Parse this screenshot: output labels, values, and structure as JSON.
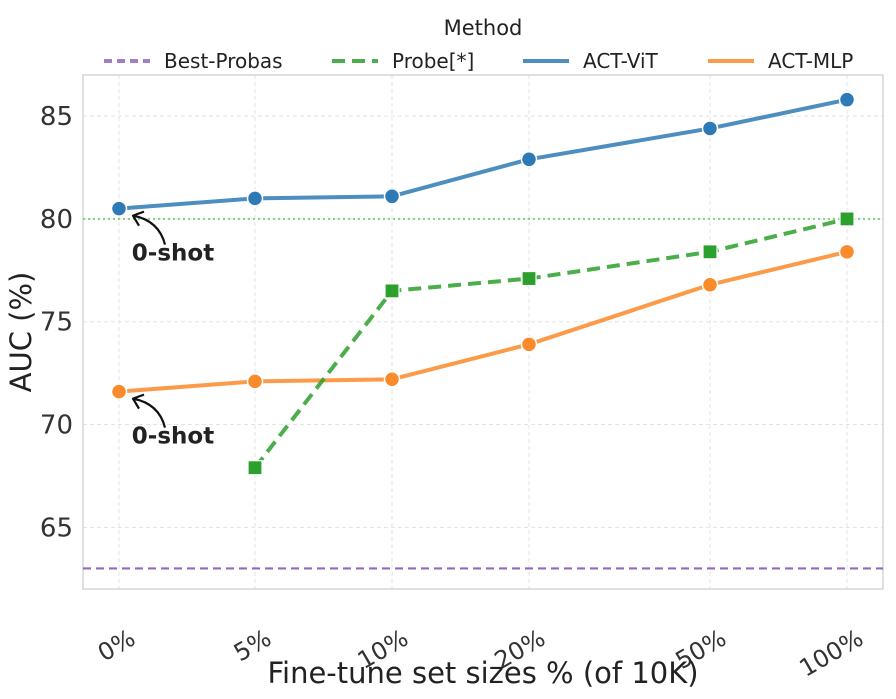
{
  "chart_data": {
    "type": "line",
    "title": "",
    "xlabel": "Fine-tune set sizes % (of 10K)",
    "ylabel": "AUC (%)",
    "categories": [
      "0%",
      "5%",
      "10%",
      "20%",
      "50%",
      "100%"
    ],
    "ylim": [
      62,
      87
    ],
    "yticks": [
      65,
      70,
      75,
      80,
      85
    ],
    "grid": true,
    "legend": {
      "title": "Method",
      "placement": "top-center",
      "entries": [
        "Best-Probas",
        "Probe[*]",
        "ACT-ViT",
        "ACT-MLP"
      ]
    },
    "series": [
      {
        "name": "ACT-ViT",
        "color": "#2e7ab6",
        "style": "solid",
        "marker": "circle",
        "values": [
          80.5,
          81.0,
          81.1,
          82.9,
          84.4,
          85.8
        ]
      },
      {
        "name": "ACT-MLP",
        "color": "#fa8a2a",
        "style": "solid",
        "marker": "circle",
        "values": [
          71.6,
          72.1,
          72.2,
          73.9,
          76.8,
          78.4
        ]
      },
      {
        "name": "Probe[*]",
        "color": "#2ca02c",
        "style": "dashed",
        "marker": "square",
        "values": [
          null,
          67.9,
          76.5,
          77.1,
          78.4,
          80.0
        ]
      }
    ],
    "reference_lines": [
      {
        "name": "Best-Probas",
        "value": 63.0,
        "color": "#9467bd",
        "style": "dashed"
      },
      {
        "name": "threshold-80",
        "value": 80.0,
        "color": "#7ccf7c",
        "style": "dotted"
      }
    ],
    "annotations": [
      {
        "text": "0-shot",
        "series": "ACT-ViT",
        "category": "0%"
      },
      {
        "text": "0-shot",
        "series": "ACT-MLP",
        "category": "0%"
      }
    ]
  }
}
